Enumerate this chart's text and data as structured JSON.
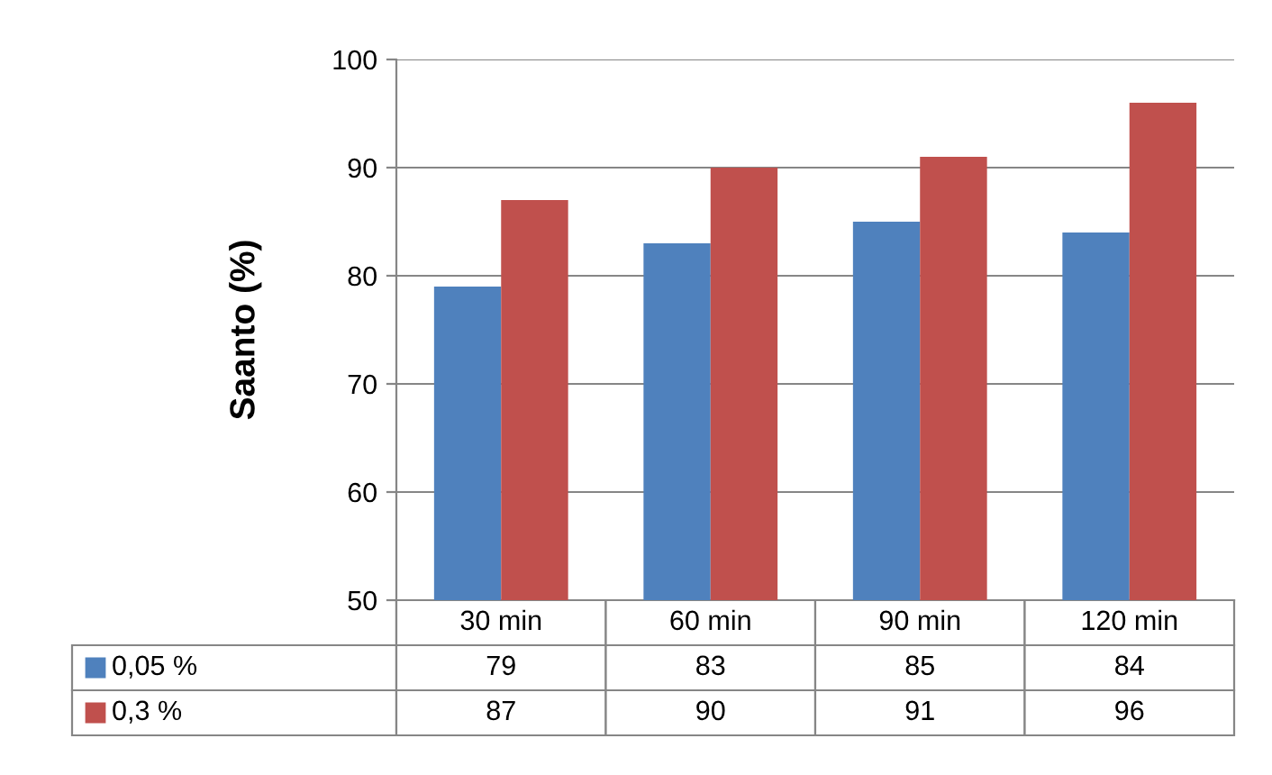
{
  "chart_data": {
    "type": "bar",
    "ylabel": "Saanto (%)",
    "categories": [
      "30 min",
      "60 min",
      "90 min",
      "120 min"
    ],
    "series": [
      {
        "name": "0,05 %",
        "color": "#4f81bd",
        "values": [
          79,
          83,
          85,
          84
        ]
      },
      {
        "name": "0,3 %",
        "color": "#c0504d",
        "values": [
          87,
          90,
          91,
          96
        ]
      }
    ],
    "ylim": [
      50,
      100
    ],
    "yticks": [
      50,
      60,
      70,
      80,
      90,
      100
    ],
    "grid": "y",
    "legend": "bottom",
    "data_labels": true
  }
}
